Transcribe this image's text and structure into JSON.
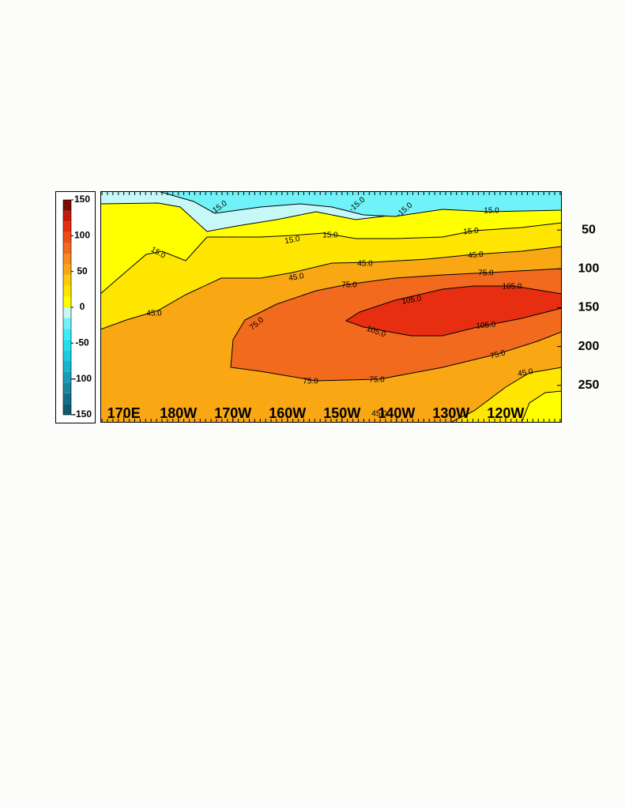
{
  "chart_data": {
    "type": "contour",
    "xlim": [
      165.7,
      250.3
    ],
    "xticks": [
      {
        "value": 170,
        "label": "170E"
      },
      {
        "value": 180,
        "label": "180W"
      },
      {
        "value": 190,
        "label": "170W"
      },
      {
        "value": 200,
        "label": "160W"
      },
      {
        "value": 210,
        "label": "150W"
      },
      {
        "value": 220,
        "label": "140W"
      },
      {
        "value": 230,
        "label": "130W"
      },
      {
        "value": 240,
        "label": "120W"
      }
    ],
    "ylim": [
      0,
      298
    ],
    "y_reversed": true,
    "yticks": [
      50,
      100,
      150,
      200,
      250
    ],
    "levels": [
      -15,
      15,
      45,
      75,
      105
    ],
    "value_labels": [
      "-15.0",
      "15.0",
      "45.0",
      "75.0",
      "105.0"
    ],
    "colorbar": {
      "lim": [
        -150,
        150
      ],
      "ticks": [
        -150,
        -100,
        -50,
        0,
        50,
        100,
        150
      ],
      "colors": [
        "#0f5a6e",
        "#136f86",
        "#1a869e",
        "#1a9cb6",
        "#18b4cc",
        "#1ccbe0",
        "#22dff0",
        "#3aeef8",
        "#70f3f8",
        "#c6f8f8",
        "#ffff00",
        "#ffe600",
        "#fccc08",
        "#f9a814",
        "#f78a1e",
        "#f26a1e",
        "#ef4c18",
        "#e82e10",
        "#c41a0c",
        "#7e0a06"
      ]
    }
  }
}
